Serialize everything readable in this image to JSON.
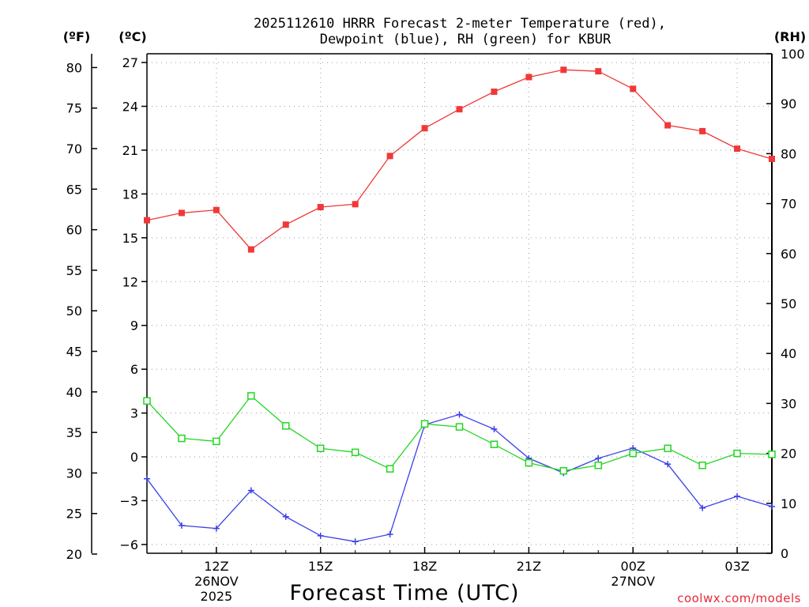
{
  "chart_data": {
    "type": "line",
    "title_line1": "2025112610 HRRR Forecast 2-meter Temperature (red),",
    "title_line2": "Dewpoint (blue), RH (green) for KBUR",
    "xlabel": "Forecast Time (UTC)",
    "unit_labels": {
      "fahrenheit": "(ºF)",
      "celsius": "(ºC)",
      "rh": "(RH)"
    },
    "credit": "coolwx.com/models",
    "x_hours": [
      10,
      11,
      12,
      13,
      14,
      15,
      16,
      17,
      18,
      19,
      20,
      21,
      22,
      23,
      24,
      25,
      26,
      27,
      28
    ],
    "xlim": [
      10,
      28
    ],
    "x_ticks": [
      {
        "hour": 12,
        "label": "12Z",
        "sub1": "26NOV",
        "sub2": "2025"
      },
      {
        "hour": 15,
        "label": "15Z",
        "sub1": "",
        "sub2": ""
      },
      {
        "hour": 18,
        "label": "18Z",
        "sub1": "",
        "sub2": ""
      },
      {
        "hour": 21,
        "label": "21Z",
        "sub1": "",
        "sub2": ""
      },
      {
        "hour": 24,
        "label": "00Z",
        "sub1": "27NOV",
        "sub2": ""
      },
      {
        "hour": 27,
        "label": "03Z",
        "sub1": "",
        "sub2": ""
      }
    ],
    "celsius_axis": {
      "ylim": [
        -6.6,
        27.6
      ],
      "ticks": [
        27,
        24,
        21,
        18,
        15,
        12,
        9,
        6,
        3,
        0,
        -3,
        -6
      ],
      "tick_labels": [
        "27",
        "24",
        "21",
        "18",
        "15",
        "12",
        "9",
        "6",
        "3",
        "0",
        "−3",
        "−6"
      ]
    },
    "fahrenheit_axis": {
      "ylim": [
        20.1,
        81.7
      ],
      "ticks": [
        80,
        75,
        70,
        65,
        60,
        55,
        50,
        45,
        40,
        35,
        30,
        25,
        20
      ],
      "tick_labels": [
        "80",
        "75",
        "70",
        "65",
        "60",
        "55",
        "50",
        "45",
        "40",
        "35",
        "30",
        "25",
        "20"
      ]
    },
    "rh_axis": {
      "ylim": [
        0,
        100
      ],
      "ticks": [
        100,
        90,
        80,
        70,
        60,
        50,
        40,
        30,
        20,
        10,
        0
      ],
      "tick_labels": [
        "100",
        "90",
        "80",
        "70",
        "60",
        "50",
        "40",
        "30",
        "20",
        "10",
        "0"
      ]
    },
    "series": [
      {
        "name": "Temperature",
        "axis": "celsius",
        "color": "#f03838",
        "marker": "filled-square",
        "values": [
          16.2,
          16.7,
          16.9,
          14.2,
          15.9,
          17.1,
          17.3,
          20.6,
          22.5,
          23.8,
          25.0,
          26.0,
          26.5,
          26.4,
          25.2,
          22.7,
          22.3,
          21.1,
          20.4
        ]
      },
      {
        "name": "Dewpoint",
        "axis": "celsius",
        "color": "#3a40e8",
        "marker": "plus",
        "values": [
          -1.5,
          -4.7,
          -4.9,
          -2.3,
          -4.1,
          -5.4,
          -5.8,
          -5.3,
          2.2,
          2.9,
          1.9,
          -0.1,
          -1.1,
          -0.1,
          0.6,
          -0.5,
          -3.5,
          -2.7,
          -3.4
        ]
      },
      {
        "name": "RH",
        "axis": "rh",
        "color": "#24d624",
        "marker": "open-square",
        "values": [
          30.5,
          23.0,
          22.4,
          31.5,
          25.5,
          21.0,
          20.2,
          16.9,
          25.9,
          25.3,
          21.8,
          18.1,
          16.5,
          17.6,
          20.0,
          21.0,
          17.6,
          20.0,
          19.8
        ]
      }
    ]
  }
}
